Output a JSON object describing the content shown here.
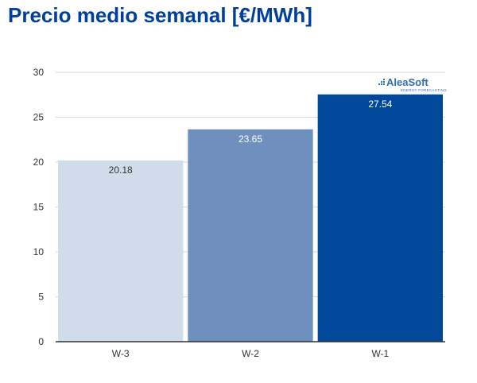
{
  "header": {
    "title": "Precio medio semanal [€/MWh]"
  },
  "brand": {
    "name": "AleaSoft",
    "tagline": "ENERGY FORECASTING",
    "color": "#2f6db5"
  },
  "chart_data": {
    "type": "bar",
    "categories": [
      "W-3",
      "W-2",
      "W-1"
    ],
    "values": [
      20.18,
      23.65,
      27.54
    ],
    "data_labels": [
      "20.18",
      "23.65",
      "27.54"
    ],
    "colors": [
      "#d1dceb",
      "#6f8fbf",
      "#00489a"
    ],
    "label_colors": [
      "#333333",
      "#ffffff",
      "#ffffff"
    ],
    "ylim": [
      0,
      30
    ],
    "yticks": [
      0,
      5,
      10,
      15,
      20,
      25,
      30
    ],
    "grid": true,
    "legend": "none"
  }
}
